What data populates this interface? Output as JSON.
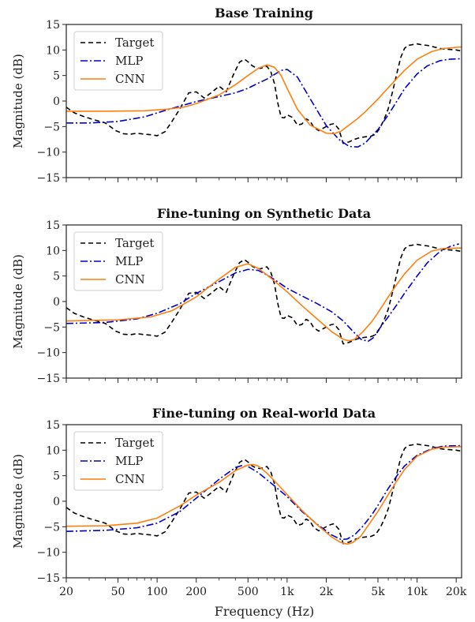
{
  "figure": {
    "xlabel": "Frequency (Hz)"
  },
  "chart_data": [
    {
      "type": "line",
      "title": "Base Training",
      "ylabel": "Magnitude (dB)",
      "xscale": "log",
      "xlim": [
        20,
        22000
      ],
      "ylim": [
        -15,
        15
      ],
      "yticks": [
        -15,
        -10,
        -5,
        0,
        5,
        10,
        15
      ],
      "xticks": [
        20,
        50,
        100,
        200,
        500,
        1000,
        2000,
        5000,
        10000,
        20000
      ],
      "xticklabels": [
        "20",
        "50",
        "100",
        "200",
        "500",
        "1k",
        "2k",
        "5k",
        "10k",
        "20k"
      ],
      "legend": "top-left",
      "series": [
        {
          "name": "Target",
          "color": "#000000",
          "dash": "dashed",
          "x": [
            20,
            23,
            27,
            32,
            40,
            48,
            55,
            62,
            70,
            80,
            90,
            100,
            115,
            130,
            150,
            175,
            200,
            230,
            260,
            300,
            340,
            390,
            430,
            470,
            500,
            540,
            580,
            620,
            660,
            700,
            750,
            800,
            850,
            900,
            950,
            1000,
            1100,
            1200,
            1300,
            1400,
            1500,
            1600,
            1750,
            1900,
            2000,
            2150,
            2300,
            2500,
            2700,
            3000,
            3300,
            3600,
            4000,
            4400,
            4800,
            5200,
            5600,
            6000,
            6500,
            7000,
            7500,
            8000,
            8500,
            9000,
            9500,
            10000,
            11000,
            12000,
            13000,
            14000,
            15000,
            16000,
            18000,
            20000,
            22000
          ],
          "y": [
            -1.2,
            -2.3,
            -3,
            -3.6,
            -4.3,
            -5.8,
            -6.4,
            -6.5,
            -6.3,
            -6.5,
            -6.6,
            -6.8,
            -6.0,
            -4.0,
            -1.5,
            1.6,
            1.8,
            0.6,
            1.6,
            2.9,
            1.8,
            5.4,
            7.6,
            8.2,
            7.7,
            6.9,
            6.5,
            6.4,
            6.6,
            6.8,
            5.7,
            3.4,
            -0.5,
            -3.2,
            -3.3,
            -2.7,
            -3.2,
            -4.7,
            -4.5,
            -3.5,
            -3.9,
            -5.1,
            -5.8,
            -5.3,
            -5.0,
            -4.6,
            -4.4,
            -5.5,
            -8.3,
            -8.0,
            -7.5,
            -7.2,
            -7.0,
            -6.9,
            -6.5,
            -5.2,
            -3.5,
            -1.5,
            2.0,
            5.5,
            8.6,
            10.3,
            10.9,
            11.0,
            11.1,
            11.2,
            11.0,
            10.9,
            10.7,
            10.5,
            10.3,
            10.2,
            10.1,
            10.0,
            9.8
          ]
        },
        {
          "name": "MLP",
          "color": "#0000cc",
          "dash": "dashdot",
          "x": [
            20,
            30,
            50,
            80,
            120,
            200,
            300,
            400,
            500,
            600,
            700,
            800,
            900,
            1000,
            1200,
            1500,
            2000,
            2500,
            3000,
            3500,
            4000,
            4500,
            5000,
            6000,
            7000,
            8000,
            10000,
            12000,
            15000,
            18000,
            22000
          ],
          "y": [
            -4.3,
            -4.3,
            -4.0,
            -3.1,
            -1.7,
            -0.1,
            0.9,
            1.6,
            2.5,
            3.5,
            4.3,
            5.2,
            6.0,
            6.2,
            4.7,
            0.5,
            -4.8,
            -7.5,
            -8.9,
            -9.0,
            -8.2,
            -6.8,
            -5.6,
            -2.7,
            0.0,
            2.4,
            5.3,
            6.9,
            7.9,
            8.2,
            8.3
          ]
        },
        {
          "name": "CNN",
          "color": "#ff7f0e",
          "dash": "solid",
          "x": [
            20,
            40,
            80,
            120,
            160,
            200,
            300,
            400,
            500,
            600,
            700,
            800,
            900,
            1000,
            1200,
            1500,
            2000,
            2300,
            2600,
            3000,
            3500,
            4000,
            5000,
            6000,
            8000,
            10000,
            13000,
            16000,
            22000
          ],
          "y": [
            -2.0,
            -2.0,
            -1.9,
            -1.6,
            -1.2,
            -0.5,
            1.2,
            3.2,
            5.0,
            6.4,
            7.1,
            6.6,
            5.0,
            2.5,
            -1.6,
            -4.7,
            -6.3,
            -6.4,
            -5.9,
            -4.7,
            -3.4,
            -2.1,
            0.4,
            2.6,
            6.0,
            8.2,
            9.7,
            10.3,
            10.6
          ]
        }
      ]
    },
    {
      "type": "line",
      "title": "Fine-tuning on Synthetic Data",
      "ylabel": "Magnitude (dB)",
      "xscale": "log",
      "xlim": [
        20,
        22000
      ],
      "ylim": [
        -15,
        15
      ],
      "yticks": [
        -15,
        -10,
        -5,
        0,
        5,
        10,
        15
      ],
      "xticks": [
        20,
        50,
        100,
        200,
        500,
        1000,
        2000,
        5000,
        10000,
        20000
      ],
      "xticklabels": [
        "20",
        "50",
        "100",
        "200",
        "500",
        "1k",
        "2k",
        "5k",
        "10k",
        "20k"
      ],
      "legend": "top-left",
      "series": [
        {
          "name": "Target",
          "color": "#000000",
          "dash": "dashed",
          "x": [
            20,
            23,
            27,
            32,
            40,
            48,
            55,
            62,
            70,
            80,
            90,
            100,
            115,
            130,
            150,
            175,
            200,
            230,
            260,
            300,
            340,
            390,
            430,
            470,
            500,
            540,
            580,
            620,
            660,
            700,
            750,
            800,
            850,
            900,
            950,
            1000,
            1100,
            1200,
            1300,
            1400,
            1500,
            1600,
            1750,
            1900,
            2000,
            2150,
            2300,
            2500,
            2700,
            3000,
            3300,
            3600,
            4000,
            4400,
            4800,
            5200,
            5600,
            6000,
            6500,
            7000,
            7500,
            8000,
            8500,
            9000,
            9500,
            10000,
            11000,
            12000,
            13000,
            14000,
            15000,
            16000,
            18000,
            20000,
            22000
          ],
          "y": [
            -1.2,
            -2.3,
            -3,
            -3.6,
            -4.3,
            -5.8,
            -6.4,
            -6.5,
            -6.3,
            -6.5,
            -6.6,
            -6.8,
            -6.0,
            -4.0,
            -1.5,
            1.6,
            1.8,
            0.6,
            1.6,
            2.9,
            1.8,
            5.4,
            7.6,
            8.2,
            7.7,
            6.9,
            6.5,
            6.4,
            6.6,
            6.8,
            5.7,
            3.4,
            -0.5,
            -3.2,
            -3.3,
            -2.7,
            -3.2,
            -4.7,
            -4.5,
            -3.5,
            -3.9,
            -5.1,
            -5.8,
            -5.3,
            -5.0,
            -4.6,
            -4.4,
            -5.5,
            -8.3,
            -8.0,
            -7.5,
            -7.2,
            -7.0,
            -6.9,
            -6.5,
            -5.2,
            -3.5,
            -1.5,
            2.0,
            5.5,
            8.6,
            10.3,
            10.9,
            11.0,
            11.1,
            11.2,
            11.0,
            10.9,
            10.7,
            10.5,
            10.3,
            10.2,
            10.1,
            10.0,
            9.8
          ]
        },
        {
          "name": "MLP",
          "color": "#0000cc",
          "dash": "dashdot",
          "x": [
            20,
            40,
            70,
            100,
            150,
            200,
            300,
            400,
            500,
            600,
            700,
            800,
            1000,
            1300,
            1700,
            2200,
            2700,
            3200,
            3700,
            4200,
            4600,
            5000,
            6000,
            7000,
            8000,
            10000,
            12000,
            15000,
            18000,
            21000
          ],
          "y": [
            -4.3,
            -4.1,
            -3.4,
            -2.3,
            -0.4,
            1.6,
            3.9,
            5.6,
            6.3,
            6.1,
            5.2,
            4.3,
            2.6,
            1.1,
            -0.4,
            -2.0,
            -3.8,
            -5.8,
            -7.4,
            -7.8,
            -7.1,
            -5.7,
            -3.0,
            -0.6,
            1.6,
            5.0,
            7.6,
            9.8,
            10.8,
            11.3
          ]
        },
        {
          "name": "CNN",
          "color": "#ff7f0e",
          "dash": "solid",
          "x": [
            20,
            50,
            90,
            130,
            200,
            300,
            400,
            500,
            600,
            700,
            800,
            1000,
            1300,
            1700,
            2200,
            2700,
            3000,
            3300,
            3800,
            4500,
            5000,
            6000,
            7000,
            8000,
            10000,
            13000,
            16000,
            22000
          ],
          "y": [
            -3.8,
            -3.6,
            -3.0,
            -1.8,
            0.9,
            4.4,
            6.7,
            7.4,
            6.5,
            5.2,
            4.0,
            1.9,
            -0.8,
            -3.4,
            -5.9,
            -7.4,
            -7.7,
            -7.4,
            -6.0,
            -3.9,
            -2.2,
            0.9,
            3.4,
            5.4,
            8.1,
            9.9,
            10.4,
            10.5
          ]
        }
      ]
    },
    {
      "type": "line",
      "title": "Fine-tuning on Real-world Data",
      "ylabel": "Magnitude (dB)",
      "xscale": "log",
      "xlim": [
        20,
        22000
      ],
      "ylim": [
        -15,
        15
      ],
      "yticks": [
        -15,
        -10,
        -5,
        0,
        5,
        10,
        15
      ],
      "xticks": [
        20,
        50,
        100,
        200,
        500,
        1000,
        2000,
        5000,
        10000,
        20000
      ],
      "xticklabels": [
        "20",
        "50",
        "100",
        "200",
        "500",
        "1k",
        "2k",
        "5k",
        "10k",
        "20k"
      ],
      "legend": "top-left",
      "series": [
        {
          "name": "Target",
          "color": "#000000",
          "dash": "dashed",
          "x": [
            20,
            23,
            27,
            32,
            40,
            48,
            55,
            62,
            70,
            80,
            90,
            100,
            115,
            130,
            150,
            175,
            200,
            230,
            260,
            300,
            340,
            390,
            430,
            470,
            500,
            540,
            580,
            620,
            660,
            700,
            750,
            800,
            850,
            900,
            950,
            1000,
            1100,
            1200,
            1300,
            1400,
            1500,
            1600,
            1750,
            1900,
            2000,
            2150,
            2300,
            2500,
            2700,
            3000,
            3300,
            3600,
            4000,
            4400,
            4800,
            5200,
            5600,
            6000,
            6500,
            7000,
            7500,
            8000,
            8500,
            9000,
            9500,
            10000,
            11000,
            12000,
            13000,
            14000,
            15000,
            16000,
            18000,
            20000,
            22000
          ],
          "y": [
            -1.2,
            -2.3,
            -3,
            -3.6,
            -4.3,
            -5.8,
            -6.4,
            -6.5,
            -6.3,
            -6.5,
            -6.6,
            -6.8,
            -6.0,
            -4.0,
            -1.5,
            1.6,
            1.8,
            0.6,
            1.6,
            2.9,
            1.8,
            5.4,
            7.6,
            8.2,
            7.7,
            6.9,
            6.5,
            6.4,
            6.6,
            6.8,
            5.7,
            3.4,
            -0.5,
            -3.2,
            -3.3,
            -2.7,
            -3.2,
            -4.7,
            -4.5,
            -3.5,
            -3.9,
            -5.1,
            -5.8,
            -5.3,
            -5.0,
            -4.6,
            -4.4,
            -5.5,
            -8.3,
            -8.0,
            -7.5,
            -7.2,
            -7.0,
            -6.9,
            -6.5,
            -5.2,
            -3.5,
            -1.5,
            2.0,
            5.5,
            8.6,
            10.3,
            10.9,
            11.0,
            11.1,
            11.2,
            11.0,
            10.9,
            10.7,
            10.5,
            10.3,
            10.2,
            10.1,
            10.0,
            9.8
          ]
        },
        {
          "name": "MLP",
          "color": "#0000cc",
          "dash": "dashdot",
          "x": [
            20,
            40,
            70,
            100,
            150,
            200,
            300,
            400,
            450,
            500,
            600,
            700,
            800,
            1000,
            1300,
            1700,
            2200,
            2600,
            2900,
            3300,
            3800,
            4500,
            5000,
            6000,
            7000,
            8000,
            10000,
            13000,
            16000,
            22000
          ],
          "y": [
            -5.9,
            -5.7,
            -5.2,
            -4.3,
            -2.0,
            0.6,
            4.3,
            6.6,
            7.0,
            6.8,
            5.6,
            4.2,
            3.0,
            0.9,
            -2.0,
            -4.5,
            -6.6,
            -7.5,
            -7.4,
            -6.6,
            -5.0,
            -2.6,
            -0.8,
            2.5,
            5.0,
            6.9,
            9.0,
            10.3,
            10.8,
            10.9
          ]
        },
        {
          "name": "CNN",
          "color": "#ff7f0e",
          "dash": "solid",
          "x": [
            20,
            40,
            70,
            100,
            150,
            200,
            300,
            400,
            500,
            550,
            600,
            700,
            800,
            1000,
            1300,
            1700,
            2200,
            2600,
            2900,
            3200,
            3700,
            4300,
            5000,
            6000,
            7000,
            8000,
            10000,
            13000,
            16000,
            22000
          ],
          "y": [
            -4.9,
            -4.8,
            -4.3,
            -3.3,
            -0.9,
            1.2,
            3.7,
            6.0,
            7.1,
            7.2,
            6.9,
            5.5,
            4.0,
            1.3,
            -1.8,
            -4.6,
            -7.0,
            -8.1,
            -8.4,
            -8.1,
            -6.8,
            -4.4,
            -2.0,
            1.3,
            4.0,
            6.2,
            8.8,
            10.2,
            10.6,
            10.7
          ]
        }
      ]
    }
  ]
}
